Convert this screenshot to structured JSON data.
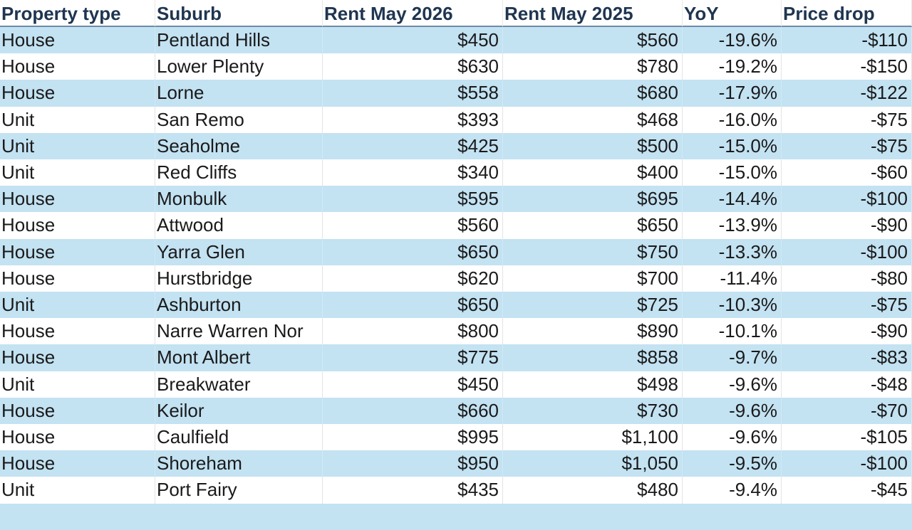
{
  "table": {
    "header": [
      "Property type",
      "Suburb",
      "Rent May 2026",
      "Rent May 2025",
      "YoY",
      "Price drop"
    ],
    "rows": [
      [
        "House",
        "Pentland Hills",
        "$450",
        "$560",
        "-19.6%",
        "-$110"
      ],
      [
        "House",
        "Lower Plenty",
        "$630",
        "$780",
        "-19.2%",
        "-$150"
      ],
      [
        "House",
        "Lorne",
        "$558",
        "$680",
        "-17.9%",
        "-$122"
      ],
      [
        "Unit",
        "San Remo",
        "$393",
        "$468",
        "-16.0%",
        "-$75"
      ],
      [
        "Unit",
        "Seaholme",
        "$425",
        "$500",
        "-15.0%",
        "-$75"
      ],
      [
        "Unit",
        "Red Cliffs",
        "$340",
        "$400",
        "-15.0%",
        "-$60"
      ],
      [
        "House",
        "Monbulk",
        "$595",
        "$695",
        "-14.4%",
        "-$100"
      ],
      [
        "House",
        "Attwood",
        "$560",
        "$650",
        "-13.9%",
        "-$90"
      ],
      [
        "House",
        "Yarra Glen",
        "$650",
        "$750",
        "-13.3%",
        "-$100"
      ],
      [
        "House",
        "Hurstbridge",
        "$620",
        "$700",
        "-11.4%",
        "-$80"
      ],
      [
        "Unit",
        "Ashburton",
        "$650",
        "$725",
        "-10.3%",
        "-$75"
      ],
      [
        "House",
        "Narre Warren Nor",
        "$800",
        "$890",
        "-10.1%",
        "-$90"
      ],
      [
        "House",
        "Mont Albert",
        "$775",
        "$858",
        "-9.7%",
        "-$83"
      ],
      [
        "Unit",
        "Breakwater",
        "$450",
        "$498",
        "-9.6%",
        "-$48"
      ],
      [
        "House",
        "Keilor",
        "$660",
        "$730",
        "-9.6%",
        "-$70"
      ],
      [
        "House",
        "Caulfield",
        "$995",
        "$1,100",
        "-9.6%",
        "-$105"
      ],
      [
        "House",
        "Shoreham",
        "$950",
        "$1,050",
        "-9.5%",
        "-$100"
      ],
      [
        "Unit",
        "Port Fairy",
        "$435",
        "$480",
        "-9.4%",
        "-$45"
      ]
    ]
  }
}
